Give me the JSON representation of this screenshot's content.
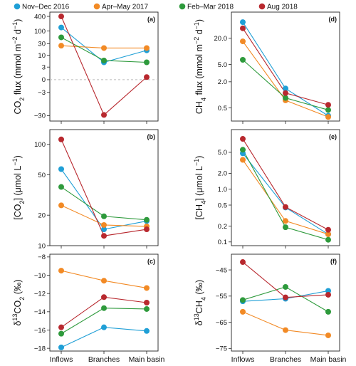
{
  "legend": [
    {
      "label": "Nov–Dec 2016",
      "color": "#1f9fd6"
    },
    {
      "label": "Apr–May 2017",
      "color": "#f28a25"
    },
    {
      "label": "Feb–Mar 2018",
      "color": "#2e9a3c"
    },
    {
      "label": "Aug 2018",
      "color": "#b8282e"
    }
  ],
  "chart_data": [
    {
      "type": "line",
      "panel": "(a)",
      "ylabel": "CO2 flux (mmol m-2 d-1)",
      "y_scale": "symmetric-log",
      "reference_line": 0,
      "categories": [
        "Inflows",
        "Branches",
        "Main basin"
      ],
      "yticks": [
        {
          "v": 400,
          "t": "400"
        },
        {
          "v": 100,
          "t": "100"
        },
        {
          "v": 30,
          "t": "30"
        },
        {
          "v": 10,
          "t": "10"
        },
        {
          "v": 3,
          "t": "3"
        },
        {
          "v": 0,
          "t": "0"
        },
        {
          "v": -3,
          "t": "−3"
        },
        {
          "v": -30,
          "t": "−30"
        }
      ],
      "series": [
        {
          "name": "Nov–Dec 2016",
          "values": [
            140,
            5,
            16
          ]
        },
        {
          "name": "Apr–May 2017",
          "values": [
            25,
            20,
            20
          ]
        },
        {
          "name": "Feb–Mar 2018",
          "values": [
            55,
            6,
            5
          ]
        },
        {
          "name": "Aug 2018",
          "values": [
            400,
            -28,
            0.5
          ]
        }
      ]
    },
    {
      "type": "line",
      "panel": "(d)",
      "ylabel": "CH4 flux (mmol m-2 d-1)",
      "y_scale": "log",
      "categories": [
        "Inflows",
        "Branches",
        "Main basin"
      ],
      "yticks": [
        {
          "v": 20,
          "t": "20.0"
        },
        {
          "v": 5,
          "t": "5.0"
        },
        {
          "v": 2,
          "t": "2.0"
        },
        {
          "v": 0.5,
          "t": "0.5"
        }
      ],
      "series": [
        {
          "name": "Nov–Dec 2016",
          "values": [
            47,
            1.4,
            0.33
          ]
        },
        {
          "name": "Apr–May 2017",
          "values": [
            17,
            0.75,
            0.31
          ]
        },
        {
          "name": "Feb–Mar 2018",
          "values": [
            6.4,
            0.85,
            0.45
          ]
        },
        {
          "name": "Aug 2018",
          "values": [
            34,
            1.1,
            0.59
          ]
        }
      ]
    },
    {
      "type": "line",
      "panel": "(b)",
      "ylabel": "[CO2] (μmol L-1)",
      "y_scale": "log",
      "categories": [
        "Inflows",
        "Branches",
        "Main basin"
      ],
      "yticks": [
        {
          "v": 100,
          "t": "100"
        },
        {
          "v": 50,
          "t": "50"
        },
        {
          "v": 20,
          "t": "20"
        },
        {
          "v": 10,
          "t": "10"
        }
      ],
      "series": [
        {
          "name": "Nov–Dec 2016",
          "values": [
            57,
            14.5,
            17.5
          ]
        },
        {
          "name": "Apr–May 2017",
          "values": [
            25,
            16,
            15.5
          ]
        },
        {
          "name": "Feb–Mar 2018",
          "values": [
            38,
            19.5,
            18
          ]
        },
        {
          "name": "Aug 2018",
          "values": [
            112,
            12.5,
            14.5
          ]
        }
      ]
    },
    {
      "type": "line",
      "panel": "(e)",
      "ylabel": "[CH4] (μmol L-1)",
      "y_scale": "log",
      "categories": [
        "Inflows",
        "Branches",
        "Main basin"
      ],
      "yticks": [
        {
          "v": 5,
          "t": "5.0"
        },
        {
          "v": 2,
          "t": "2.0"
        },
        {
          "v": 1,
          "t": "1.0"
        },
        {
          "v": 0.5,
          "t": "0.5"
        },
        {
          "v": 0.2,
          "t": "0.2"
        },
        {
          "v": 0.1,
          "t": "0.1"
        }
      ],
      "series": [
        {
          "name": "Nov–Dec 2016",
          "values": [
            4.8,
            0.45,
            0.14
          ]
        },
        {
          "name": "Apr–May 2017",
          "values": [
            3.6,
            0.25,
            0.14
          ]
        },
        {
          "name": "Feb–Mar 2018",
          "values": [
            5.6,
            0.19,
            0.11
          ]
        },
        {
          "name": "Aug 2018",
          "values": [
            9.0,
            0.46,
            0.17
          ]
        }
      ]
    },
    {
      "type": "line",
      "panel": "(c)",
      "ylabel": "δ13CO2 (‰)",
      "ylim": [
        -18,
        -8
      ],
      "categories": [
        "Inflows",
        "Branches",
        "Main basin"
      ],
      "yticks": [
        {
          "v": -8,
          "t": "−8"
        },
        {
          "v": -10,
          "t": "−10"
        },
        {
          "v": -12,
          "t": "−12"
        },
        {
          "v": -14,
          "t": "−14"
        },
        {
          "v": -16,
          "t": "−16"
        },
        {
          "v": -18,
          "t": "−18"
        }
      ],
      "series": [
        {
          "name": "Nov–Dec 2016",
          "values": [
            -17.9,
            -15.7,
            -16.1
          ]
        },
        {
          "name": "Apr–May 2017",
          "values": [
            -9.5,
            -10.6,
            -11.4
          ]
        },
        {
          "name": "Feb–Mar 2018",
          "values": [
            -16.4,
            -13.6,
            -13.7
          ]
        },
        {
          "name": "Aug 2018",
          "values": [
            -15.7,
            -12.4,
            -13
          ]
        }
      ]
    },
    {
      "type": "line",
      "panel": "(f)",
      "ylabel": "δ13CH4 (‰)",
      "ylim": [
        -75,
        -40
      ],
      "categories": [
        "Inflows",
        "Branches",
        "Main basin"
      ],
      "yticks": [
        {
          "v": -45,
          "t": "−45"
        },
        {
          "v": -55,
          "t": "−55"
        },
        {
          "v": -65,
          "t": "−65"
        },
        {
          "v": -75,
          "t": "−75"
        }
      ],
      "series": [
        {
          "name": "Nov–Dec 2016",
          "values": [
            -57,
            -56,
            -53
          ]
        },
        {
          "name": "Apr–May 2017",
          "values": [
            -61,
            -68,
            -70
          ]
        },
        {
          "name": "Feb–Mar 2018",
          "values": [
            -56.5,
            -51.5,
            -61
          ]
        },
        {
          "name": "Aug 2018",
          "values": [
            -42,
            -55.5,
            -54.5
          ]
        }
      ]
    }
  ]
}
